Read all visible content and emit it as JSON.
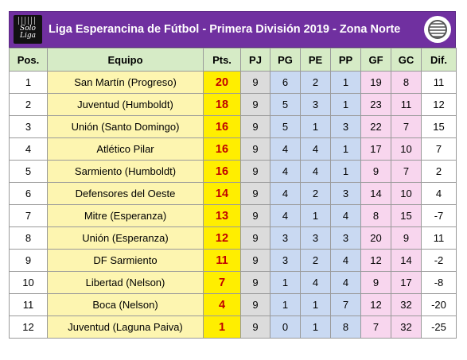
{
  "header": {
    "title": "Liga Esperancina de Fútbol - Primera División 2019 - Zona Norte",
    "left_logo": {
      "icon": "solo-liga-logo",
      "text": "Solo Liga"
    },
    "right_logo": {
      "icon": "league-crest-logo"
    },
    "background": "#7030a0"
  },
  "table": {
    "columns": [
      "Pos.",
      "Equipo",
      "Pts.",
      "PJ",
      "PG",
      "PE",
      "PP",
      "GF",
      "GC",
      "Dif."
    ],
    "rows": [
      {
        "pos": "1",
        "team": "San Martín (Progreso)",
        "pts": "20",
        "pj": "9",
        "pg": "6",
        "pe": "2",
        "pp": "1",
        "gf": "19",
        "gc": "8",
        "dif": "11"
      },
      {
        "pos": "2",
        "team": "Juventud (Humboldt)",
        "pts": "18",
        "pj": "9",
        "pg": "5",
        "pe": "3",
        "pp": "1",
        "gf": "23",
        "gc": "11",
        "dif": "12"
      },
      {
        "pos": "3",
        "team": "Unión (Santo Domingo)",
        "pts": "16",
        "pj": "9",
        "pg": "5",
        "pe": "1",
        "pp": "3",
        "gf": "22",
        "gc": "7",
        "dif": "15"
      },
      {
        "pos": "4",
        "team": "Atlético Pilar",
        "pts": "16",
        "pj": "9",
        "pg": "4",
        "pe": "4",
        "pp": "1",
        "gf": "17",
        "gc": "10",
        "dif": "7"
      },
      {
        "pos": "5",
        "team": "Sarmiento (Humboldt)",
        "pts": "16",
        "pj": "9",
        "pg": "4",
        "pe": "4",
        "pp": "1",
        "gf": "9",
        "gc": "7",
        "dif": "2"
      },
      {
        "pos": "6",
        "team": "Defensores del Oeste",
        "pts": "14",
        "pj": "9",
        "pg": "4",
        "pe": "2",
        "pp": "3",
        "gf": "14",
        "gc": "10",
        "dif": "4"
      },
      {
        "pos": "7",
        "team": "Mitre (Esperanza)",
        "pts": "13",
        "pj": "9",
        "pg": "4",
        "pe": "1",
        "pp": "4",
        "gf": "8",
        "gc": "15",
        "dif": "-7"
      },
      {
        "pos": "8",
        "team": "Unión (Esperanza)",
        "pts": "12",
        "pj": "9",
        "pg": "3",
        "pe": "3",
        "pp": "3",
        "gf": "20",
        "gc": "9",
        "dif": "11"
      },
      {
        "pos": "9",
        "team": "DF Sarmiento",
        "pts": "11",
        "pj": "9",
        "pg": "3",
        "pe": "2",
        "pp": "4",
        "gf": "12",
        "gc": "14",
        "dif": "-2"
      },
      {
        "pos": "10",
        "team": "Libertad (Nelson)",
        "pts": "7",
        "pj": "9",
        "pg": "1",
        "pe": "4",
        "pp": "4",
        "gf": "9",
        "gc": "17",
        "dif": "-8"
      },
      {
        "pos": "11",
        "team": "Boca (Nelson)",
        "pts": "4",
        "pj": "9",
        "pg": "1",
        "pe": "1",
        "pp": "7",
        "gf": "12",
        "gc": "32",
        "dif": "-20"
      },
      {
        "pos": "12",
        "team": "Juventud (Laguna Paiva)",
        "pts": "1",
        "pj": "9",
        "pg": "0",
        "pe": "1",
        "pp": "8",
        "gf": "7",
        "gc": "32",
        "dif": "-25"
      }
    ]
  },
  "colors": {
    "header_row": "#d6ebc6",
    "team_cells": "#fdf5b0",
    "points_cells": "#ffee00",
    "points_text": "#c00000",
    "played_cells": "#dcdcdc",
    "result_cells": "#c9d9f2",
    "goal_cells": "#f8d6ee"
  }
}
